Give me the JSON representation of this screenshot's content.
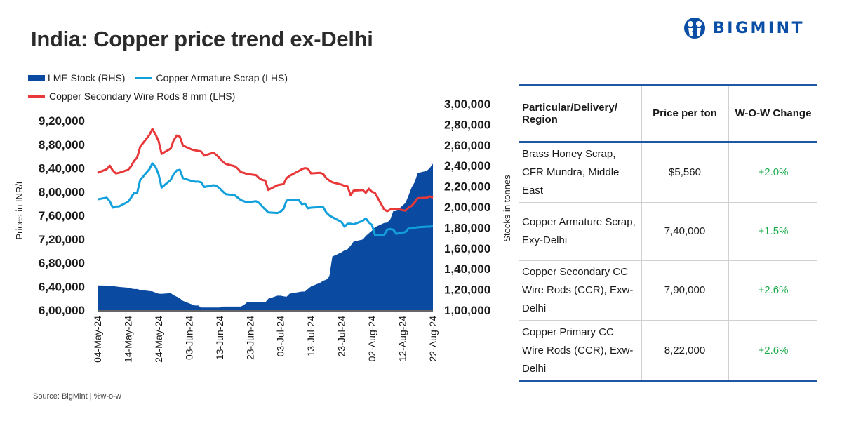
{
  "header": {
    "title": "India: Copper price trend ex-Delhi",
    "logo_text": "BIGMINT"
  },
  "colors": {
    "lme_stock": "#0a4aa0",
    "armature_scrap": "#12a0dc",
    "wire_rods": "#e8383a",
    "positive_change": "#1aab4b",
    "table_rule": "#1f57a8"
  },
  "footer": {
    "source": "Source: BigMint | %w-o-w"
  },
  "chart_data": {
    "type": "line",
    "title": "India: Copper price trend ex-Delhi",
    "ylabel": "Prices in INR/t",
    "y2label": "Stocks in tonnes",
    "ylim": [
      600000,
      920000
    ],
    "y2lim": [
      100000,
      300000
    ],
    "yticks": [
      "6,00,000",
      "6,40,000",
      "6,80,000",
      "7,20,000",
      "7,60,000",
      "8,00,000",
      "8,40,000",
      "8,80,000",
      "9,20,000"
    ],
    "y2ticks": [
      "1,00,000",
      "1,20,000",
      "1,40,000",
      "1,60,000",
      "1,80,000",
      "2,00,000",
      "2,20,000",
      "2,40,000",
      "2,60,000",
      "2,80,000",
      "3,00,000"
    ],
    "xticks": [
      "04-May-24",
      "14-May-24",
      "24-May-24",
      "03-Jun-24",
      "13-Jun-24",
      "23-Jun-24",
      "03-Jul-24",
      "13-Jul-24",
      "23-Jul-24",
      "02-Aug-24",
      "12-Aug-24",
      "22-Aug-24"
    ],
    "grid": false,
    "legend": "top-left",
    "x_days": [
      0,
      3,
      4,
      5,
      6,
      7,
      10,
      11,
      12,
      13,
      14,
      17,
      18,
      19,
      20,
      21,
      24,
      25,
      26,
      27,
      28,
      31,
      32,
      33,
      34,
      35,
      38,
      39,
      40,
      41,
      42,
      45,
      46,
      47,
      48,
      49,
      52,
      53,
      54,
      55,
      56,
      59,
      60,
      61,
      62,
      63,
      66,
      67,
      68,
      69,
      70,
      73,
      74,
      75,
      76,
      77,
      80,
      81,
      82,
      83,
      84,
      87,
      88,
      89,
      90,
      91,
      94,
      95,
      96,
      97,
      98,
      101,
      102,
      103,
      104,
      105,
      108,
      109,
      110
    ],
    "series": [
      {
        "name": "LME Stock (RHS)",
        "axis": "right",
        "style": "area",
        "values": [
          124000,
          123800,
          123500,
          123300,
          123000,
          122500,
          121800,
          121000,
          120500,
          120500,
          119500,
          118500,
          118200,
          117000,
          116000,
          115800,
          116500,
          114500,
          113000,
          111500,
          109000,
          105500,
          104500,
          104500,
          102500,
          102500,
          102500,
          102500,
          102500,
          103500,
          103500,
          103500,
          103500,
          103500,
          105000,
          107500,
          107500,
          107500,
          107500,
          107500,
          111000,
          114000,
          114000,
          113500,
          113000,
          116000,
          117500,
          118000,
          118000,
          120500,
          123000,
          126500,
          128500,
          129500,
          132500,
          152000,
          156000,
          158000,
          159000,
          162500,
          166500,
          168500,
          172000,
          174500,
          177000,
          180500,
          184500,
          185000,
          188000,
          196000,
          196000,
          204000,
          211000,
          219000,
          224000,
          233000,
          235000,
          238000,
          242000
        ]
      },
      {
        "name": "Copper Armature Scrap (LHS)",
        "axis": "left",
        "style": "line",
        "values": [
          787000,
          790000,
          784000,
          773000,
          775000,
          775000,
          783000,
          790000,
          798000,
          798000,
          820000,
          838000,
          848000,
          842000,
          830000,
          807000,
          820000,
          830000,
          836000,
          837000,
          823000,
          818000,
          817000,
          817000,
          816000,
          808000,
          811000,
          810000,
          806000,
          801000,
          796000,
          794000,
          790000,
          786000,
          784000,
          782000,
          784000,
          781000,
          775000,
          770000,
          765000,
          764000,
          766000,
          771000,
          785000,
          786000,
          786000,
          779000,
          780000,
          772000,
          773000,
          774000,
          774000,
          765000,
          760000,
          757000,
          749000,
          741000,
          746000,
          746000,
          745000,
          751000,
          755000,
          748000,
          744000,
          727000,
          727000,
          736000,
          737000,
          736000,
          729000,
          732000,
          738000,
          738000,
          739000,
          740000,
          741000,
          741000,
          742000
        ]
      },
      {
        "name": "Copper Secondary Wire Rods 8 mm (LHS)",
        "axis": "left",
        "style": "line",
        "values": [
          832000,
          838000,
          844000,
          836000,
          831000,
          832000,
          837000,
          843000,
          852000,
          858000,
          876000,
          896000,
          906000,
          897000,
          886000,
          864000,
          873000,
          887000,
          895000,
          893000,
          878000,
          871000,
          870000,
          869000,
          868000,
          861000,
          866000,
          862000,
          857000,
          851000,
          847000,
          843000,
          839000,
          833000,
          832000,
          830000,
          828000,
          823000,
          820000,
          819000,
          803000,
          811000,
          812000,
          813000,
          823000,
          827000,
          835000,
          838000,
          840000,
          839000,
          831000,
          832000,
          830000,
          823000,
          819000,
          816000,
          812000,
          810000,
          809000,
          794000,
          802000,
          803000,
          798000,
          805000,
          800000,
          798000,
          770000,
          767000,
          770000,
          771000,
          771000,
          768000,
          773000,
          776000,
          782000,
          789000,
          790000,
          792000,
          790000
        ]
      }
    ]
  },
  "legend": {
    "items": [
      {
        "label": "LME Stock (RHS)"
      },
      {
        "label": "Copper Armature Scrap (LHS)"
      },
      {
        "label": "Copper Secondary Wire Rods 8 mm (LHS)"
      }
    ]
  },
  "table": {
    "headers": [
      "Particular/Delivery/ Region",
      "Price per ton",
      "W-O-W Change"
    ],
    "rows": [
      {
        "particular": "Brass Honey Scrap, CFR Mundra, Middle East",
        "price": "$5,560",
        "change": "+2.0%"
      },
      {
        "particular": "Copper Armature Scrap, Exy-Delhi",
        "price": "7,40,000",
        "change": "+1.5%"
      },
      {
        "particular": "Copper Secondary CC Wire Rods (CCR), Exw-Delhi",
        "price": "7,90,000",
        "change": "+2.6%"
      },
      {
        "particular": "Copper Primary CC Wire Rods (CCR), Exw-Delhi",
        "price": "8,22,000",
        "change": "+2.6%"
      }
    ]
  }
}
